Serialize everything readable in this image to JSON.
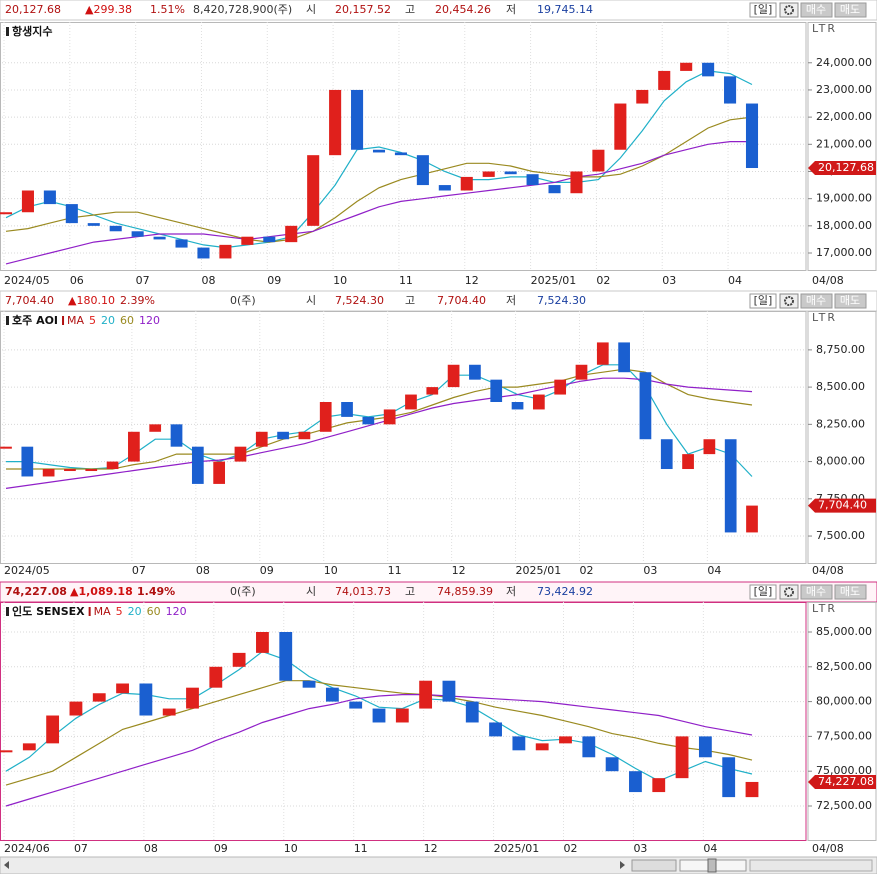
{
  "axis_mode": "LTR",
  "period_button": "[일]",
  "buy_button": "매수",
  "sell_button": "매도",
  "up_color": "#e0201c",
  "down_color": "#1a5fd0",
  "panels": [
    {
      "title": "항생지수",
      "end_date": "04/08",
      "header": [
        "20,127.68",
        "▲299.38",
        "1.51%",
        "8,420,728,900(주)",
        "시",
        "20,157.52",
        "고",
        "20,454.26",
        "저",
        "19,745.14"
      ],
      "ylim": [
        16375,
        25500
      ],
      "yticks": [
        {
          "value": 17000,
          "label": "17,000.00"
        },
        {
          "value": 18000,
          "label": "18,000.00"
        },
        {
          "value": 19000,
          "label": "19,000.00"
        },
        {
          "value": 20000,
          "label": "20,000.00"
        },
        {
          "value": 21000,
          "label": "21,000.00"
        },
        {
          "value": 22000,
          "label": "22,000.00"
        },
        {
          "value": 23000,
          "label": "23,000.00"
        },
        {
          "value": 24000,
          "label": "24,000.00"
        }
      ],
      "categories": [
        "2024/05",
        null,
        null,
        "06",
        null,
        null,
        "07",
        null,
        null,
        "08",
        null,
        null,
        "09",
        null,
        null,
        "10",
        null,
        null,
        "11",
        null,
        null,
        "12",
        null,
        null,
        "2025/01",
        null,
        null,
        "02",
        null,
        null,
        "03",
        null,
        null,
        "04",
        null
      ],
      "candles": [
        18500,
        19300,
        18800,
        18100,
        18000,
        17800,
        17600,
        17500,
        17200,
        16800,
        17300,
        17600,
        17400,
        18000,
        20600,
        23000,
        20800,
        20700,
        20600,
        19500,
        19300,
        19800,
        20000,
        19900,
        19500,
        19200,
        20000,
        20800,
        22500,
        23000,
        23700,
        24000,
        23500,
        22500,
        20127.68
      ],
      "series": [
        {
          "color": "#20b0c8",
          "values": [
            18300,
            18700,
            18900,
            18700,
            18400,
            18100,
            17900,
            17700,
            17500,
            17300,
            17200,
            17300,
            17400,
            17600,
            18500,
            19500,
            20800,
            20900,
            20700,
            20400,
            20000,
            19700,
            19700,
            19800,
            19800,
            19600,
            19600,
            19700,
            20500,
            21500,
            22600,
            23300,
            23700,
            23600,
            23200
          ]
        },
        {
          "color": "#9a8a20",
          "values": [
            17800,
            17900,
            18100,
            18300,
            18400,
            18500,
            18500,
            18300,
            18100,
            17900,
            17700,
            17500,
            17400,
            17500,
            17800,
            18300,
            18900,
            19400,
            19700,
            19900,
            20100,
            20300,
            20300,
            20200,
            20000,
            19900,
            19800,
            19800,
            19900,
            20200,
            20600,
            21100,
            21600,
            21900,
            22000
          ]
        },
        {
          "color": "#9020c8",
          "values": [
            16600,
            16800,
            17000,
            17200,
            17400,
            17500,
            17600,
            17700,
            17700,
            17700,
            17600,
            17500,
            17600,
            17700,
            17800,
            18100,
            18400,
            18700,
            18900,
            19000,
            19100,
            19200,
            19300,
            19400,
            19500,
            19600,
            19800,
            19900,
            20100,
            20300,
            20600,
            20800,
            21000,
            21100,
            21100
          ]
        }
      ]
    },
    {
      "title": "호주 AOI",
      "end_date": "04/08",
      "legend": [
        "MA",
        "5",
        "20",
        "60",
        "120"
      ],
      "legend_colors": [
        "#b01010",
        "#e0201c",
        "#20b0c8",
        "#9a8a20",
        "#9020c8"
      ],
      "header": [
        "7,704.40",
        "▲180.10",
        "2.39%",
        "0(주)",
        "시",
        "7,524.30",
        "고",
        "7,704.40",
        "저",
        "7,524.30"
      ],
      "ylim": [
        7319,
        9011
      ],
      "yticks": [
        {
          "value": 7500,
          "label": "7,500.00"
        },
        {
          "value": 7750,
          "label": "7,750.00"
        },
        {
          "value": 8000,
          "label": "8,000.00"
        },
        {
          "value": 8250,
          "label": "8,250.00"
        },
        {
          "value": 8500,
          "label": "8,500.00"
        },
        {
          "value": 8750,
          "label": "8,750.00"
        }
      ],
      "categories": [
        "2024/05",
        null,
        null,
        null,
        null,
        null,
        "07",
        null,
        null,
        "08",
        null,
        null,
        "09",
        null,
        null,
        "10",
        null,
        null,
        "11",
        null,
        null,
        "12",
        null,
        null,
        "2025/01",
        null,
        null,
        "02",
        null,
        null,
        "03",
        null,
        null,
        "04",
        null,
        null
      ],
      "candles": [
        8100,
        7900,
        7950,
        7950,
        7950,
        8000,
        8200,
        8250,
        8100,
        7850,
        8000,
        8100,
        8200,
        8150,
        8200,
        8400,
        8300,
        8250,
        8350,
        8450,
        8500,
        8650,
        8550,
        8400,
        8350,
        8450,
        8550,
        8650,
        8800,
        8600,
        8150,
        7950,
        8050,
        8150,
        7524.3,
        7704.4
      ],
      "series": [
        {
          "color": "#20b0c8",
          "values": [
            8000,
            8000,
            7980,
            7960,
            7950,
            7960,
            8050,
            8150,
            8150,
            8050,
            8000,
            8050,
            8150,
            8180,
            8200,
            8300,
            8320,
            8300,
            8320,
            8400,
            8450,
            8580,
            8580,
            8520,
            8450,
            8420,
            8480,
            8580,
            8650,
            8650,
            8500,
            8250,
            8050,
            8100,
            8050,
            7900
          ]
        },
        {
          "color": "#9a8a20",
          "values": [
            7950,
            7950,
            7950,
            7950,
            7950,
            7950,
            7980,
            8000,
            8050,
            8050,
            8050,
            8050,
            8100,
            8150,
            8180,
            8220,
            8260,
            8280,
            8300,
            8330,
            8380,
            8430,
            8470,
            8500,
            8500,
            8520,
            8540,
            8580,
            8600,
            8620,
            8600,
            8520,
            8450,
            8420,
            8400,
            8380
          ]
        },
        {
          "color": "#9020c8",
          "values": [
            7820,
            7840,
            7860,
            7880,
            7900,
            7920,
            7940,
            7960,
            7980,
            8000,
            8010,
            8030,
            8060,
            8090,
            8120,
            8160,
            8200,
            8240,
            8280,
            8320,
            8360,
            8390,
            8410,
            8430,
            8450,
            8480,
            8510,
            8540,
            8560,
            8560,
            8550,
            8520,
            8500,
            8490,
            8480,
            8470
          ]
        }
      ]
    },
    {
      "title": "인도 SENSEX",
      "end_date": "04/08",
      "legend": [
        "MA",
        "5",
        "20",
        "60",
        "120"
      ],
      "legend_colors": [
        "#b01010",
        "#e0201c",
        "#20b0c8",
        "#9a8a20",
        "#9020c8"
      ],
      "header": [
        "74,227.08",
        "▲1,089.18",
        "1.49%",
        "0(주)",
        "시",
        "74,013.73",
        "고",
        "74,859.39",
        "저",
        "73,424.92"
      ],
      "ylim": [
        70057,
        87155
      ],
      "yticks": [
        {
          "value": 72500,
          "label": "72,500.00"
        },
        {
          "value": 75000,
          "label": "75,000.00"
        },
        {
          "value": 77500,
          "label": "77,500.00"
        },
        {
          "value": 80000,
          "label": "80,000.00"
        },
        {
          "value": 82500,
          "label": "82,500.00"
        },
        {
          "value": 85000,
          "label": "85,000.00"
        }
      ],
      "categories": [
        "2024/06",
        null,
        null,
        "07",
        null,
        null,
        "08",
        null,
        null,
        "09",
        null,
        null,
        "10",
        null,
        null,
        "11",
        null,
        null,
        "12",
        null,
        null,
        "2025/01",
        null,
        null,
        "02",
        null,
        null,
        "03",
        null,
        null,
        "04",
        null,
        null
      ],
      "candles": [
        76500,
        77000,
        79000,
        80000,
        80600,
        81300,
        79000,
        79500,
        81000,
        82500,
        83500,
        85000,
        81500,
        81000,
        80000,
        79500,
        78500,
        79500,
        81500,
        80000,
        78500,
        77500,
        76500,
        77000,
        77500,
        76000,
        75000,
        73500,
        74500,
        77500,
        76000,
        73137.9,
        74227.08
      ],
      "series": [
        {
          "color": "#20b0c8",
          "values": [
            75000,
            76000,
            77500,
            78800,
            79800,
            80600,
            80500,
            80200,
            80200,
            81200,
            82300,
            83600,
            83000,
            81800,
            81000,
            80400,
            79600,
            79500,
            80200,
            80100,
            79600,
            78600,
            77600,
            77200,
            77300,
            77000,
            76200,
            75200,
            74300,
            75000,
            75700,
            75200,
            74800
          ]
        },
        {
          "color": "#9a8a20",
          "values": [
            74000,
            74500,
            75000,
            76000,
            77000,
            78000,
            78500,
            79000,
            79500,
            80000,
            80500,
            81000,
            81500,
            81500,
            81200,
            81000,
            80800,
            80600,
            80500,
            80300,
            80000,
            79600,
            79300,
            79000,
            78600,
            78200,
            77700,
            77400,
            77000,
            76700,
            76500,
            76200,
            75800
          ]
        },
        {
          "color": "#9020c8",
          "values": [
            72500,
            73000,
            73500,
            74000,
            74500,
            75000,
            75500,
            76000,
            76500,
            77200,
            77800,
            78500,
            79000,
            79500,
            79800,
            80200,
            80400,
            80500,
            80500,
            80400,
            80300,
            80200,
            80100,
            80000,
            79800,
            79600,
            79400,
            79200,
            79000,
            78600,
            78200,
            77900,
            77600
          ]
        }
      ]
    }
  ]
}
